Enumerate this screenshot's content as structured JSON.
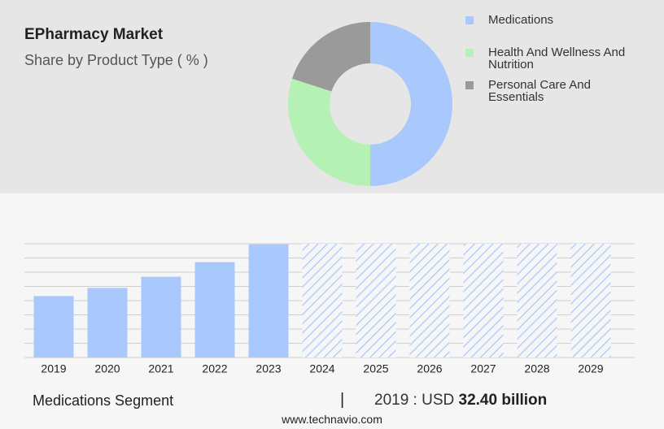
{
  "chart_data": [
    {
      "type": "donut",
      "title": "EPharmacy Market",
      "subtitle": "Share by Product Type ( % )",
      "categories": [
        "Medications",
        "Health And Wellness And Nutrition",
        "Personal Care And Essentials"
      ],
      "values": [
        50,
        30,
        20
      ],
      "colors": [
        "#a9c8fb",
        "#b5f0b5",
        "#9a9a9a"
      ]
    },
    {
      "type": "bar",
      "name": "Medications Segment",
      "footer_prefix": "2019 : USD",
      "categories": [
        "2019",
        "2020",
        "2021",
        "2022",
        "2023",
        "2024",
        "2025",
        "2026",
        "2027",
        "2028",
        "2029"
      ],
      "values": [
        32.4,
        36.7,
        42.6,
        50.3,
        59.7,
        null,
        null,
        null,
        null,
        null,
        null
      ],
      "value_labels": [
        "32.40 billion",
        null,
        null,
        null,
        null,
        null,
        null,
        null,
        null,
        null,
        null
      ],
      "color": "#a9c8fb",
      "ylim": [
        0,
        60
      ],
      "grid": true
    }
  ],
  "source": "www.technavio.com"
}
